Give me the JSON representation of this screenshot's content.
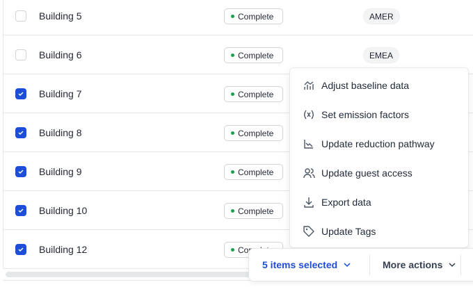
{
  "rows": [
    {
      "name": "Building 5",
      "status": "Complete",
      "region": "AMER",
      "checked": false
    },
    {
      "name": "Building 6",
      "status": "Complete",
      "region": "EMEA",
      "checked": false
    },
    {
      "name": "Building 7",
      "status": "Complete",
      "region": "",
      "checked": true
    },
    {
      "name": "Building 8",
      "status": "Complete",
      "region": "",
      "checked": true
    },
    {
      "name": "Building 9",
      "status": "Complete",
      "region": "",
      "checked": true
    },
    {
      "name": "Building 10",
      "status": "Complete",
      "region": "",
      "checked": true
    },
    {
      "name": "Building 12",
      "status": "Complete",
      "region": "",
      "checked": true
    }
  ],
  "menu": {
    "items": [
      {
        "label": "Adjust baseline data",
        "icon": "baseline-chart-icon"
      },
      {
        "label": "Set emission factors",
        "icon": "variable-x-icon"
      },
      {
        "label": "Update reduction pathway",
        "icon": "line-chart-down-icon"
      },
      {
        "label": "Update guest access",
        "icon": "users-icon"
      },
      {
        "label": "Export data",
        "icon": "download-icon"
      },
      {
        "label": "Update Tags",
        "icon": "tag-icon"
      }
    ]
  },
  "action_bar": {
    "selected_label": "5 items selected",
    "more_label": "More actions"
  },
  "colors": {
    "accent": "#1d4ed8",
    "status_dot": "#16a34a"
  }
}
